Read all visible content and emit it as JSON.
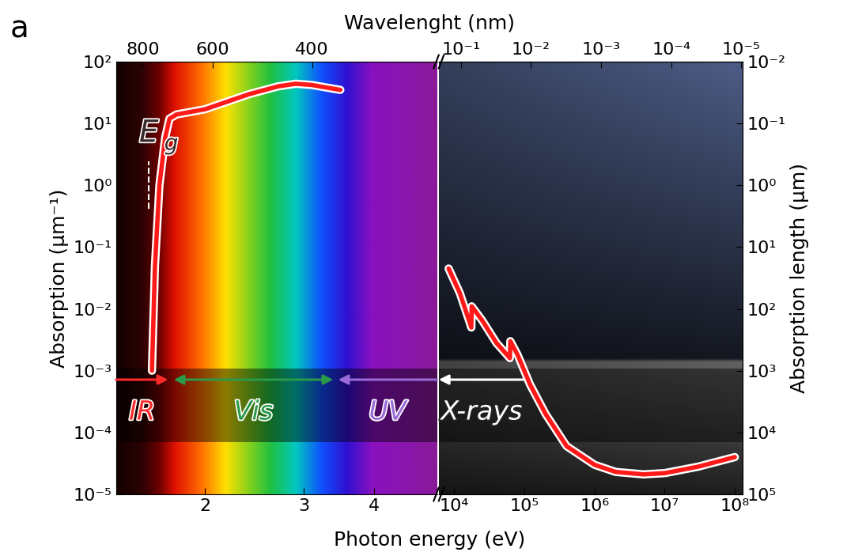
{
  "panel_label": "a",
  "xlabel": "Photon energy (eV)",
  "x2label": "Wavelenght (nm)",
  "chart_data": [
    {
      "type": "line",
      "log": true,
      "color": "#ff1a1a",
      "ylabel": "Absorption (μm⁻¹)",
      "x": [
        1.61,
        1.63,
        1.66,
        1.7,
        1.73,
        1.78,
        2.0,
        2.4,
        2.7,
        2.9,
        3.1,
        3.3,
        3.48
      ],
      "values": [
        0.001,
        0.05,
        1,
        6,
        12,
        14,
        17,
        30,
        40,
        44,
        42,
        38,
        35
      ],
      "xlim": [
        1.39,
        5.17
      ],
      "xticks": [
        2,
        3,
        4
      ],
      "x2ticks": [
        800,
        600,
        400
      ],
      "ylim": [
        1e-05,
        100
      ],
      "yticks": [
        {
          "value": 100,
          "label": "10²"
        },
        {
          "value": 10,
          "label": "10¹"
        },
        {
          "value": 1,
          "label": "10⁰"
        },
        {
          "value": 0.1,
          "label": "10⁻¹"
        },
        {
          "value": 0.01,
          "label": "10⁻²"
        },
        {
          "value": 0.001,
          "label": "10⁻³"
        },
        {
          "value": 0.0001,
          "label": "10⁻⁴"
        },
        {
          "value": 1e-05,
          "label": "10⁻⁵"
        }
      ],
      "annotations": [
        {
          "text": "Eg",
          "x": 1.59
        }
      ],
      "bands": [
        {
          "label": "IR",
          "from": 1.39,
          "to": 1.72,
          "color": "#ff2a2a"
        },
        {
          "label": "Vis",
          "from": 1.76,
          "to": 3.38,
          "color": "#2a9a4a"
        },
        {
          "label": "UV",
          "from": 5.17,
          "to": 3.45,
          "color": "#9a6ad8"
        }
      ]
    },
    {
      "type": "line",
      "log": true,
      "color": "#ff1a1a",
      "y2label": "Absorption length (μm)",
      "x": [
        8300,
        12000,
        17500,
        17700,
        25000,
        40000,
        62000,
        63000,
        80000,
        120000,
        200000,
        400000,
        1000000,
        2000000,
        5000000,
        10000000,
        30000000,
        100000000
      ],
      "values": [
        0.045,
        0.018,
        0.005,
        0.011,
        0.0065,
        0.0028,
        0.0016,
        0.003,
        0.0018,
        0.0006,
        0.0002,
        6e-05,
        3e-05,
        2.3e-05,
        2.1e-05,
        2.2e-05,
        2.8e-05,
        4e-05
      ],
      "xlim": [
        6000,
        130000000
      ],
      "xticks": [
        {
          "value": 10000,
          "label": "10⁴"
        },
        {
          "value": 100000,
          "label": "10⁵"
        },
        {
          "value": 1000000,
          "label": "10⁶"
        },
        {
          "value": 10000000,
          "label": "10⁷"
        },
        {
          "value": 100000000,
          "label": "10⁸"
        }
      ],
      "x2ticks": [
        {
          "value": 0.1,
          "label": "10⁻¹"
        },
        {
          "value": 0.01,
          "label": "10⁻²"
        },
        {
          "value": 0.001,
          "label": "10⁻³"
        },
        {
          "value": 0.0001,
          "label": "10⁻⁴"
        },
        {
          "value": 1e-05,
          "label": "10⁻⁵"
        }
      ],
      "ylim": [
        1e-05,
        100
      ],
      "y2lim": [
        100000,
        0.01
      ],
      "y2ticks": [
        {
          "value": 0.01,
          "label": "10⁻²"
        },
        {
          "value": 0.1,
          "label": "10⁻¹"
        },
        {
          "value": 1,
          "label": "10⁰"
        },
        {
          "value": 10,
          "label": "10¹"
        },
        {
          "value": 100,
          "label": "10²"
        },
        {
          "value": 1000,
          "label": "10³"
        },
        {
          "value": 10000,
          "label": "10⁴"
        },
        {
          "value": 100000,
          "label": "10⁵"
        }
      ],
      "bands": [
        {
          "label": "X-rays",
          "from": 100000,
          "to": 6000,
          "color": "#ffffff"
        }
      ]
    }
  ]
}
